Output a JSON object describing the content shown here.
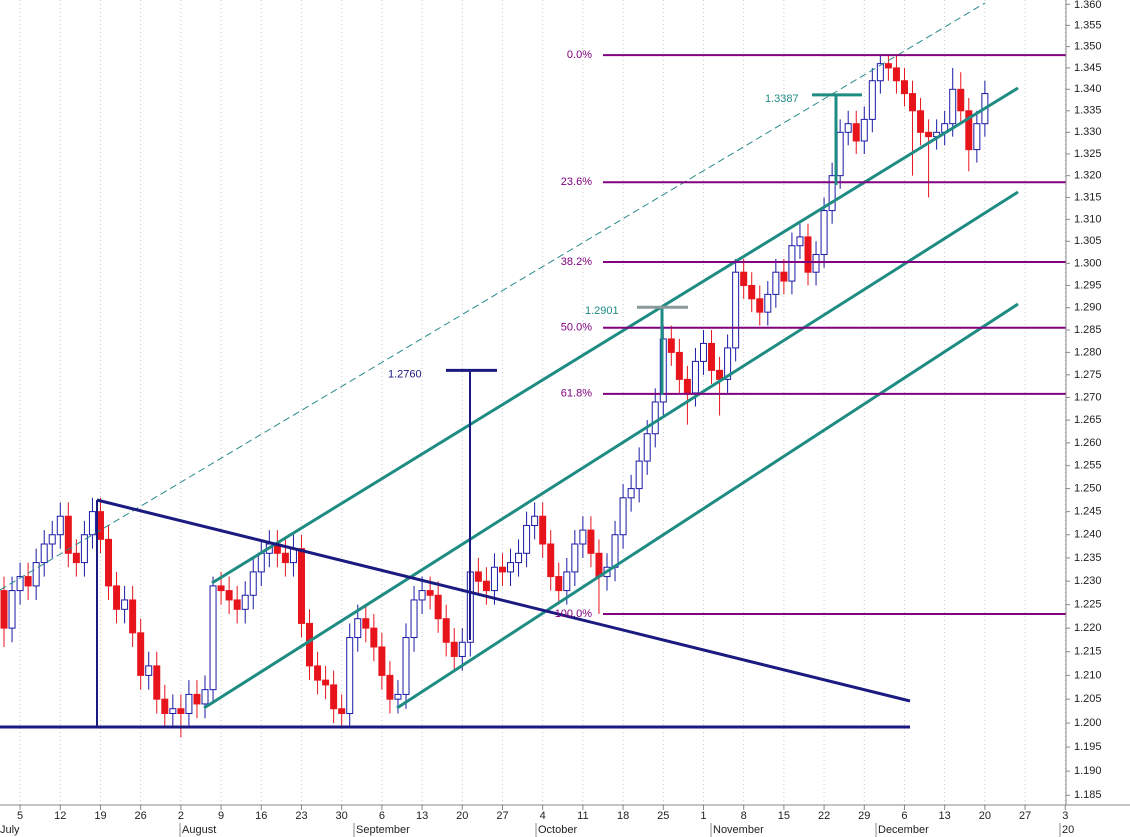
{
  "chart_data": {
    "type": "candlestick",
    "log_scale": true,
    "grid_x": true,
    "up_color": "#1a1aa6",
    "down_color": "#e8141c",
    "categories": [
      null,
      null,
      "5",
      null,
      null,
      null,
      null,
      "12",
      null,
      null,
      null,
      null,
      "19",
      null,
      null,
      null,
      null,
      "26",
      null,
      null,
      null,
      null,
      "2",
      null,
      null,
      null,
      null,
      "9",
      null,
      null,
      null,
      null,
      "16",
      null,
      null,
      null,
      null,
      "23",
      null,
      null,
      null,
      null,
      "30",
      null,
      null,
      null,
      null,
      "6",
      null,
      null,
      null,
      null,
      "13",
      null,
      null,
      null,
      null,
      "20",
      null,
      null,
      null,
      null,
      "27",
      null,
      null,
      null,
      null,
      "4",
      null,
      null,
      null,
      null,
      "11",
      null,
      null,
      null,
      null,
      "18",
      null,
      null,
      null,
      null,
      "25",
      null,
      null,
      null,
      null,
      "1",
      null,
      null,
      null,
      null,
      "8",
      null,
      null,
      null,
      null,
      "15",
      null,
      null,
      null,
      null,
      "22",
      null,
      null,
      null,
      null,
      "29",
      null,
      null,
      null,
      null,
      "6",
      null,
      null,
      null,
      null,
      "13",
      null,
      null,
      null,
      null,
      "20",
      null,
      null,
      null,
      null,
      "27",
      null,
      null,
      null,
      null,
      "3"
    ],
    "month_labels": [
      "July",
      "August",
      "September",
      "October",
      "November",
      "December",
      "20"
    ],
    "open": [
      1.228,
      1.22,
      1.228,
      1.231,
      1.229,
      1.234,
      1.238,
      1.24,
      1.244,
      1.236,
      1.234,
      1.24,
      1.245,
      1.239,
      1.229,
      1.224,
      1.226,
      1.219,
      1.21,
      1.212,
      1.205,
      1.202,
      1.203,
      1.202,
      1.206,
      1.204,
      1.207,
      1.229,
      1.228,
      1.226,
      1.224,
      1.227,
      1.232,
      1.236,
      1.238,
      1.236,
      1.234,
      1.237,
      1.221,
      1.212,
      1.209,
      1.208,
      1.203,
      1.202,
      1.218,
      1.222,
      1.22,
      1.216,
      1.21,
      1.205,
      1.206,
      1.218,
      1.226,
      1.228,
      1.227,
      1.222,
      1.217,
      1.214,
      1.217,
      1.232,
      1.23,
      1.228,
      1.233,
      1.232,
      1.234,
      1.236,
      1.242,
      1.244,
      1.238,
      1.231,
      1.228,
      1.232,
      1.238,
      1.241,
      1.236,
      1.231,
      1.233,
      1.24,
      1.248,
      1.25,
      1.256,
      1.262,
      1.269,
      1.283,
      1.28,
      1.274,
      1.271,
      1.278,
      1.282,
      1.276,
      1.274,
      1.281,
      1.298,
      1.295,
      1.292,
      1.289,
      1.293,
      1.298,
      1.296,
      1.304,
      1.306,
      1.298,
      1.302,
      1.312,
      1.32,
      1.33,
      1.332,
      1.328,
      1.333,
      1.342,
      1.346,
      1.345,
      1.342,
      1.339,
      1.335,
      1.33,
      1.329,
      1.33,
      1.332,
      1.34,
      1.335,
      1.326,
      1.332,
      null,
      null,
      null,
      null,
      null,
      null,
      null,
      null,
      null,
      null
    ],
    "high": [
      1.231,
      1.231,
      1.234,
      1.234,
      1.237,
      1.241,
      1.243,
      1.247,
      1.247,
      1.239,
      1.243,
      1.248,
      1.248,
      1.242,
      1.232,
      1.229,
      1.229,
      1.222,
      1.215,
      1.215,
      1.208,
      1.206,
      1.206,
      1.209,
      1.209,
      1.21,
      1.231,
      1.232,
      1.231,
      1.229,
      1.23,
      1.235,
      1.239,
      1.241,
      1.241,
      1.239,
      1.24,
      1.24,
      1.224,
      1.215,
      1.212,
      1.211,
      1.206,
      1.221,
      1.225,
      1.225,
      1.223,
      1.219,
      1.213,
      1.209,
      1.221,
      1.229,
      1.231,
      1.231,
      1.23,
      1.225,
      1.22,
      1.22,
      1.235,
      1.235,
      1.233,
      1.236,
      1.236,
      1.237,
      1.239,
      1.245,
      1.247,
      1.247,
      1.241,
      1.234,
      1.235,
      1.241,
      1.244,
      1.244,
      1.239,
      1.236,
      1.243,
      1.251,
      1.253,
      1.259,
      1.265,
      1.272,
      1.286,
      1.286,
      1.283,
      1.277,
      1.281,
      1.285,
      1.285,
      1.279,
      1.284,
      1.301,
      1.301,
      1.298,
      1.295,
      1.296,
      1.301,
      1.301,
      1.307,
      1.309,
      1.309,
      1.305,
      1.315,
      1.323,
      1.333,
      1.335,
      1.335,
      1.336,
      1.345,
      1.348,
      1.348,
      1.348,
      1.345,
      1.342,
      1.338,
      1.333,
      1.333,
      1.335,
      1.345,
      1.344,
      1.338,
      1.335,
      1.342,
      null,
      null,
      null,
      null,
      null,
      null,
      null,
      null,
      null,
      null
    ],
    "low": [
      1.216,
      1.217,
      1.225,
      1.226,
      1.226,
      1.231,
      1.235,
      1.237,
      1.233,
      1.231,
      1.231,
      1.237,
      1.236,
      1.226,
      1.221,
      1.221,
      1.216,
      1.207,
      1.207,
      1.202,
      1.199,
      1.199,
      1.197,
      1.199,
      1.201,
      1.201,
      1.204,
      1.225,
      1.223,
      1.221,
      1.221,
      1.224,
      1.229,
      1.233,
      1.233,
      1.231,
      1.231,
      1.218,
      1.209,
      1.206,
      1.205,
      1.2,
      1.199,
      1.199,
      1.215,
      1.217,
      1.213,
      1.207,
      1.202,
      1.202,
      1.203,
      1.215,
      1.223,
      1.224,
      1.219,
      1.214,
      1.211,
      1.211,
      1.214,
      1.227,
      1.225,
      1.225,
      1.229,
      1.229,
      1.231,
      1.233,
      1.239,
      1.235,
      1.228,
      1.225,
      1.225,
      1.229,
      1.235,
      1.233,
      1.223,
      1.228,
      1.23,
      1.237,
      1.245,
      1.247,
      1.253,
      1.259,
      1.266,
      1.277,
      1.271,
      1.264,
      1.268,
      1.275,
      1.273,
      1.266,
      1.271,
      1.278,
      1.292,
      1.289,
      1.286,
      1.286,
      1.29,
      1.293,
      1.293,
      1.301,
      1.295,
      1.295,
      1.299,
      1.309,
      1.317,
      1.327,
      1.325,
      1.325,
      1.33,
      1.339,
      1.342,
      1.339,
      1.336,
      1.32,
      1.327,
      1.315,
      1.326,
      1.327,
      1.329,
      1.332,
      1.321,
      1.323,
      1.329,
      null,
      null,
      null,
      null,
      null,
      null,
      null,
      null,
      null,
      null
    ],
    "close": [
      1.22,
      1.228,
      1.231,
      1.229,
      1.234,
      1.238,
      1.24,
      1.244,
      1.236,
      1.234,
      1.24,
      1.245,
      1.239,
      1.229,
      1.224,
      1.226,
      1.219,
      1.21,
      1.212,
      1.205,
      1.202,
      1.203,
      1.202,
      1.206,
      1.204,
      1.207,
      1.229,
      1.228,
      1.226,
      1.224,
      1.227,
      1.232,
      1.236,
      1.238,
      1.236,
      1.234,
      1.237,
      1.221,
      1.212,
      1.209,
      1.208,
      1.203,
      1.202,
      1.218,
      1.222,
      1.22,
      1.216,
      1.21,
      1.205,
      1.206,
      1.218,
      1.226,
      1.228,
      1.227,
      1.222,
      1.217,
      1.214,
      1.217,
      1.232,
      1.23,
      1.228,
      1.233,
      1.232,
      1.234,
      1.236,
      1.242,
      1.244,
      1.238,
      1.231,
      1.228,
      1.232,
      1.238,
      1.241,
      1.236,
      1.231,
      1.233,
      1.24,
      1.248,
      1.25,
      1.256,
      1.262,
      1.269,
      1.283,
      1.28,
      1.274,
      1.271,
      1.278,
      1.282,
      1.276,
      1.274,
      1.281,
      1.298,
      1.295,
      1.292,
      1.289,
      1.293,
      1.298,
      1.296,
      1.304,
      1.306,
      1.298,
      1.302,
      1.312,
      1.32,
      1.33,
      1.332,
      1.328,
      1.333,
      1.342,
      1.346,
      1.345,
      1.342,
      1.339,
      1.335,
      1.33,
      1.329,
      1.33,
      1.332,
      1.34,
      1.335,
      1.326,
      1.332,
      1.339,
      null,
      null,
      null,
      null,
      null,
      null,
      null,
      null,
      null,
      null
    ],
    "ylim": [
      1.183,
      1.361
    ],
    "yticks": [
      1.185,
      {
        "value": 1.19,
        "label": "1.190"
      },
      1.195,
      {
        "value": 1.2,
        "label": "1.200"
      },
      1.205,
      {
        "value": 1.21,
        "label": "1.210"
      },
      1.215,
      {
        "value": 1.22,
        "label": "1.220"
      },
      1.225,
      {
        "value": 1.23,
        "label": "1.230"
      },
      1.235,
      {
        "value": 1.24,
        "label": "1.240"
      },
      1.245,
      {
        "value": 1.25,
        "label": "1.250"
      },
      1.255,
      {
        "value": 1.26,
        "label": "1.260"
      },
      1.265,
      {
        "value": 1.27,
        "label": "1.270"
      },
      1.275,
      {
        "value": 1.28,
        "label": "1.280"
      },
      1.285,
      {
        "value": 1.29,
        "label": "1.290"
      },
      1.295,
      {
        "value": 1.3,
        "label": "1.300"
      },
      1.305,
      {
        "value": 1.31,
        "label": "1.310"
      },
      1.315,
      {
        "value": 1.32,
        "label": "1.320"
      },
      1.325,
      {
        "value": 1.33,
        "label": "1.330"
      },
      1.335,
      {
        "value": 1.34,
        "label": "1.340"
      },
      1.345,
      {
        "value": 1.35,
        "label": "1.350"
      },
      1.355,
      {
        "value": 1.36,
        "label": "1.360"
      }
    ],
    "fib_levels": [
      {
        "value": 1.348,
        "label": "0.0%"
      },
      {
        "value": 1.3185,
        "label": "23.6%"
      },
      {
        "value": 1.3003,
        "label": "38.2%"
      },
      {
        "value": 1.2855,
        "label": "50.0%"
      },
      {
        "value": 1.2708,
        "label": "61.8%"
      },
      {
        "value": 1.223,
        "label": "100.0%"
      }
    ],
    "fib_color": "#800080",
    "annotations": [
      {
        "value": 1.276,
        "label": "1.2760"
      },
      {
        "value": 1.2901,
        "label": "1.2901"
      },
      {
        "value": 1.3387,
        "label": "1.3387"
      }
    ]
  }
}
